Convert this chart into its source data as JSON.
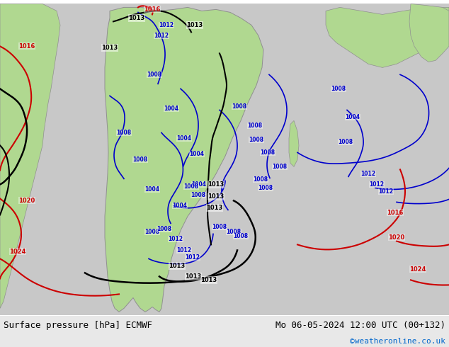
{
  "title_left": "Surface pressure [hPa] ECMWF",
  "title_right": "Mo 06-05-2024 12:00 UTC (00+132)",
  "credit": "©weatheronline.co.uk",
  "bg_color": "#d3d3d3",
  "land_color": "#b8e0a0",
  "ocean_color": "#d8d8d8",
  "figsize": [
    6.34,
    4.9
  ],
  "dpi": 100,
  "bottom_bar_color": "#e8e8e8",
  "contour_black_levels": [
    1013,
    1012,
    1008
  ],
  "contour_blue_levels": [
    1004,
    1008,
    1012
  ],
  "contour_red_levels": [
    1016,
    1020,
    1024
  ]
}
